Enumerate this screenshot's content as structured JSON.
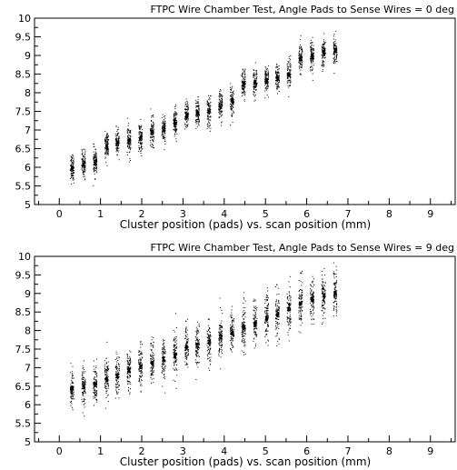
{
  "chart_data": [
    {
      "type": "scatter",
      "title": "FTPC Wire Chamber Test, Angle Pads to Sense Wires = 0 deg",
      "xlabel": "Cluster position (pads) vs. scan position (mm)",
      "ylabel": "",
      "xlim": [
        -0.6,
        9.6
      ],
      "ylim": [
        5,
        10
      ],
      "xticks": [
        0,
        1,
        2,
        3,
        4,
        5,
        6,
        7,
        8,
        9
      ],
      "yticks": [
        5,
        5.5,
        6,
        6.5,
        7,
        7.5,
        8,
        8.5,
        9,
        9.5,
        10
      ],
      "grid": false,
      "columns": [
        {
          "x": 0.3,
          "y": 6.0,
          "spread": 0.55
        },
        {
          "x": 0.58,
          "y": 6.1,
          "spread": 0.55
        },
        {
          "x": 0.86,
          "y": 6.15,
          "spread": 0.55
        },
        {
          "x": 1.14,
          "y": 6.58,
          "spread": 0.55
        },
        {
          "x": 1.4,
          "y": 6.68,
          "spread": 0.55
        },
        {
          "x": 1.68,
          "y": 6.72,
          "spread": 0.6
        },
        {
          "x": 1.96,
          "y": 6.8,
          "spread": 0.6
        },
        {
          "x": 2.24,
          "y": 6.95,
          "spread": 0.6
        },
        {
          "x": 2.52,
          "y": 7.05,
          "spread": 0.6
        },
        {
          "x": 2.8,
          "y": 7.22,
          "spread": 0.6
        },
        {
          "x": 3.08,
          "y": 7.4,
          "spread": 0.6
        },
        {
          "x": 3.34,
          "y": 7.45,
          "spread": 0.6
        },
        {
          "x": 3.62,
          "y": 7.5,
          "spread": 0.6
        },
        {
          "x": 3.9,
          "y": 7.65,
          "spread": 0.6
        },
        {
          "x": 4.18,
          "y": 7.8,
          "spread": 0.6
        },
        {
          "x": 4.46,
          "y": 8.25,
          "spread": 0.6
        },
        {
          "x": 4.74,
          "y": 8.28,
          "spread": 0.6
        },
        {
          "x": 5.02,
          "y": 8.35,
          "spread": 0.6
        },
        {
          "x": 5.28,
          "y": 8.4,
          "spread": 0.6
        },
        {
          "x": 5.56,
          "y": 8.5,
          "spread": 0.6
        },
        {
          "x": 5.84,
          "y": 8.92,
          "spread": 0.6
        },
        {
          "x": 6.12,
          "y": 9.0,
          "spread": 0.6
        },
        {
          "x": 6.4,
          "y": 9.1,
          "spread": 0.6
        },
        {
          "x": 6.68,
          "y": 9.15,
          "spread": 0.55
        }
      ]
    },
    {
      "type": "scatter",
      "title": "FTPC Wire Chamber Test, Angle Pads to Sense Wires = 9 deg",
      "xlabel": "Cluster position (pads) vs. scan position (mm)",
      "ylabel": "",
      "xlim": [
        -0.6,
        9.6
      ],
      "ylim": [
        5,
        10
      ],
      "xticks": [
        0,
        1,
        2,
        3,
        4,
        5,
        6,
        7,
        8,
        9
      ],
      "yticks": [
        5,
        5.5,
        6,
        6.5,
        7,
        7.5,
        8,
        8.5,
        9,
        9.5,
        10
      ],
      "grid": false,
      "columns": [
        {
          "x": 0.3,
          "y": 6.45,
          "spread": 0.75
        },
        {
          "x": 0.58,
          "y": 6.5,
          "spread": 0.8
        },
        {
          "x": 0.86,
          "y": 6.55,
          "spread": 0.8
        },
        {
          "x": 1.14,
          "y": 6.7,
          "spread": 0.85
        },
        {
          "x": 1.4,
          "y": 6.8,
          "spread": 0.85
        },
        {
          "x": 1.68,
          "y": 6.95,
          "spread": 0.85
        },
        {
          "x": 1.96,
          "y": 7.05,
          "spread": 0.85
        },
        {
          "x": 2.24,
          "y": 7.15,
          "spread": 0.9
        },
        {
          "x": 2.52,
          "y": 7.25,
          "spread": 0.9
        },
        {
          "x": 2.8,
          "y": 7.35,
          "spread": 0.9
        },
        {
          "x": 3.08,
          "y": 7.55,
          "spread": 0.9
        },
        {
          "x": 3.34,
          "y": 7.62,
          "spread": 0.9
        },
        {
          "x": 3.62,
          "y": 7.7,
          "spread": 0.9
        },
        {
          "x": 3.9,
          "y": 7.85,
          "spread": 0.95
        },
        {
          "x": 4.18,
          "y": 7.95,
          "spread": 0.95
        },
        {
          "x": 4.46,
          "y": 8.1,
          "spread": 0.95
        },
        {
          "x": 4.74,
          "y": 8.2,
          "spread": 0.95
        },
        {
          "x": 5.02,
          "y": 8.35,
          "spread": 0.95
        },
        {
          "x": 5.28,
          "y": 8.45,
          "spread": 0.95
        },
        {
          "x": 5.56,
          "y": 8.6,
          "spread": 0.95
        },
        {
          "x": 5.84,
          "y": 8.75,
          "spread": 0.95
        },
        {
          "x": 6.12,
          "y": 8.85,
          "spread": 0.95
        },
        {
          "x": 6.4,
          "y": 8.95,
          "spread": 0.9
        },
        {
          "x": 6.68,
          "y": 9.05,
          "spread": 0.85
        }
      ]
    }
  ]
}
